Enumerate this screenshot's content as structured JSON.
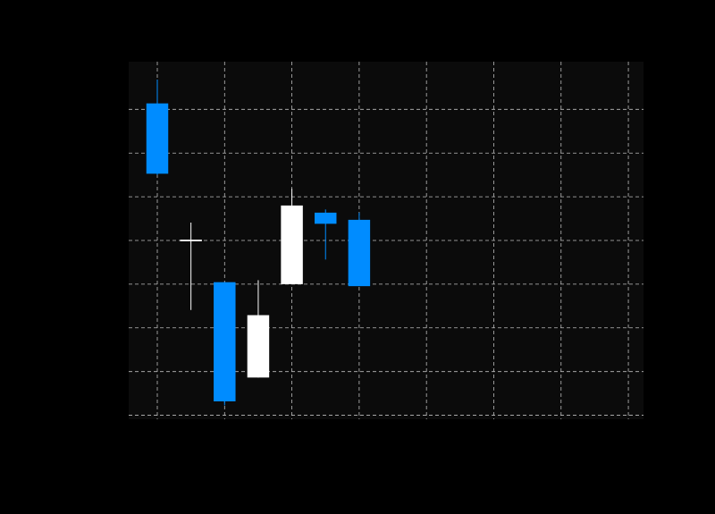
{
  "chart_data": {
    "type": "candlestick",
    "title": "",
    "xlabel": "",
    "ylabel": "",
    "grid": true,
    "colors": {
      "figure_background": "#000000",
      "plot_background": "#0b0b0b",
      "up": "#ffffff",
      "down": "#008cff",
      "grid": "#bdbdbd"
    },
    "xlim": [
      -0.85,
      14.45
    ],
    "ylim": [
      18.0,
      27.0
    ],
    "x_ticks": [
      0,
      2,
      4,
      6,
      8,
      10,
      12,
      14
    ],
    "y_ticks": [
      18.1,
      19.2,
      20.3,
      21.4,
      22.5,
      23.6,
      24.7,
      25.8
    ],
    "candles": [
      {
        "x": 0,
        "open": 25.95,
        "high": 26.55,
        "low": 24.15,
        "close": 24.18
      },
      {
        "x": 1,
        "open": 22.48,
        "high": 22.95,
        "low": 20.75,
        "close": 22.52
      },
      {
        "x": 2,
        "open": 21.45,
        "high": 21.45,
        "low": 18.35,
        "close": 18.45
      },
      {
        "x": 3,
        "open": 19.05,
        "high": 21.5,
        "low": 19.05,
        "close": 20.62
      },
      {
        "x": 4,
        "open": 21.4,
        "high": 23.8,
        "low": 21.4,
        "close": 23.38
      },
      {
        "x": 5,
        "open": 23.2,
        "high": 23.28,
        "low": 22.02,
        "close": 22.92
      },
      {
        "x": 6,
        "open": 23.02,
        "high": 23.2,
        "low": 21.35,
        "close": 21.35
      }
    ]
  }
}
